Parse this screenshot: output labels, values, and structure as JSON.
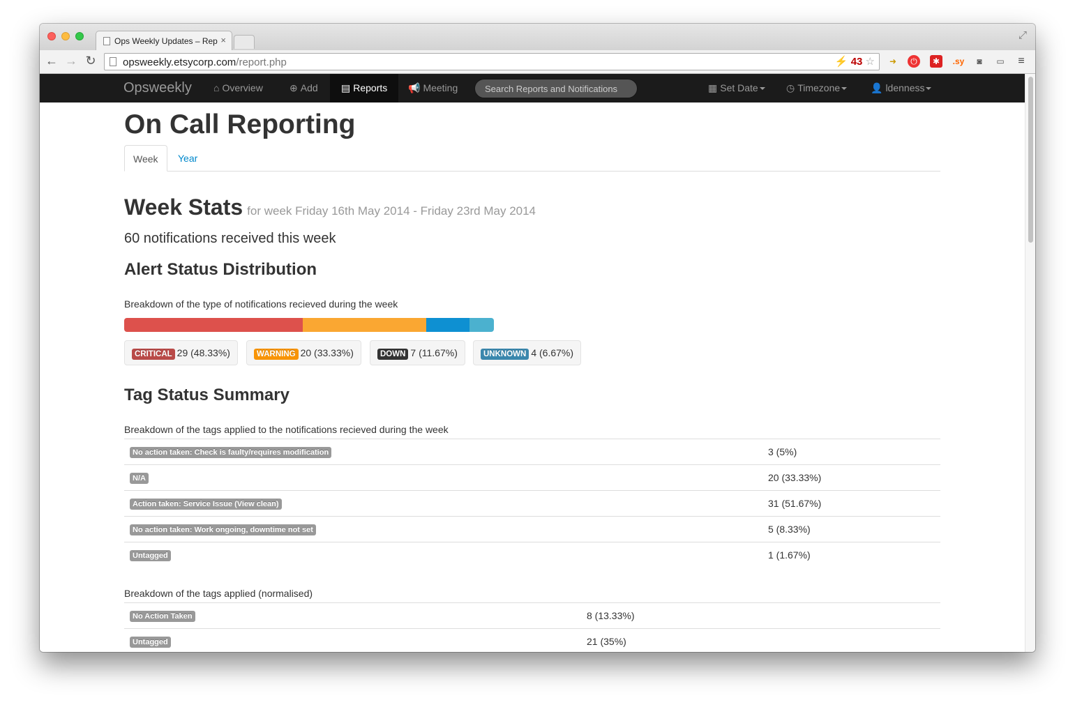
{
  "browser": {
    "tab_title": "Ops Weekly Updates – Rep",
    "url_host": "opsweekly.etsycorp.com",
    "url_path": "/report.php",
    "ext_badge": "43",
    "ext_sy": ".sy"
  },
  "navbar": {
    "brand": "Opsweekly",
    "items": [
      {
        "label": "Overview",
        "icon": "home-icon"
      },
      {
        "label": "Add",
        "icon": "plus-circle-icon"
      },
      {
        "label": "Reports",
        "icon": "list-icon",
        "active": true
      },
      {
        "label": "Meeting",
        "icon": "bullhorn-icon"
      }
    ],
    "search_placeholder": "Search Reports and Notifications",
    "right_items": [
      {
        "label": "Set Date",
        "icon": "calendar-icon"
      },
      {
        "label": "Timezone",
        "icon": "clock-icon"
      },
      {
        "label": "ldenness",
        "icon": "user-icon"
      }
    ]
  },
  "page": {
    "title": "On Call Reporting",
    "tabs": [
      "Week",
      "Year"
    ],
    "week_stats_title": "Week Stats",
    "week_stats_subtitle": "for week Friday 16th May 2014 - Friday 23rd May 2014",
    "notifications_summary": "60 notifications received this week"
  },
  "alert_status": {
    "title": "Alert Status Distribution",
    "description": "Breakdown of the type of notifications recieved during the week",
    "items": [
      {
        "label": "CRITICAL",
        "value": "29 (48.33%)",
        "percent": 48.33,
        "color": "#dd514c"
      },
      {
        "label": "WARNING",
        "value": "20 (33.33%)",
        "percent": 33.33,
        "color": "#faa732"
      },
      {
        "label": "DOWN",
        "value": "7 (11.67%)",
        "percent": 11.67,
        "color": "#0e90d2"
      },
      {
        "label": "UNKNOWN",
        "value": "4 (6.67%)",
        "percent": 6.67,
        "color": "#4bb1cf"
      }
    ]
  },
  "tag_summary": {
    "title": "Tag Status Summary",
    "description": "Breakdown of the tags applied to the notifications recieved during the week",
    "rows": [
      {
        "tag": "No action taken: Check is faulty/requires modification",
        "value": "3 (5%)"
      },
      {
        "tag": "N/A",
        "value": "20 (33.33%)"
      },
      {
        "tag": "Action taken: Service Issue (View clean)",
        "value": "31 (51.67%)"
      },
      {
        "tag": "No action taken: Work ongoing, downtime not set",
        "value": "5 (8.33%)"
      },
      {
        "tag": "Untagged",
        "value": "1 (1.67%)"
      }
    ],
    "normalised_description": "Breakdown of the tags applied (normalised)",
    "normalised_rows": [
      {
        "tag": "No Action Taken",
        "value": "8 (13.33%)"
      },
      {
        "tag": "Untagged",
        "value": "21 (35%)"
      }
    ]
  }
}
